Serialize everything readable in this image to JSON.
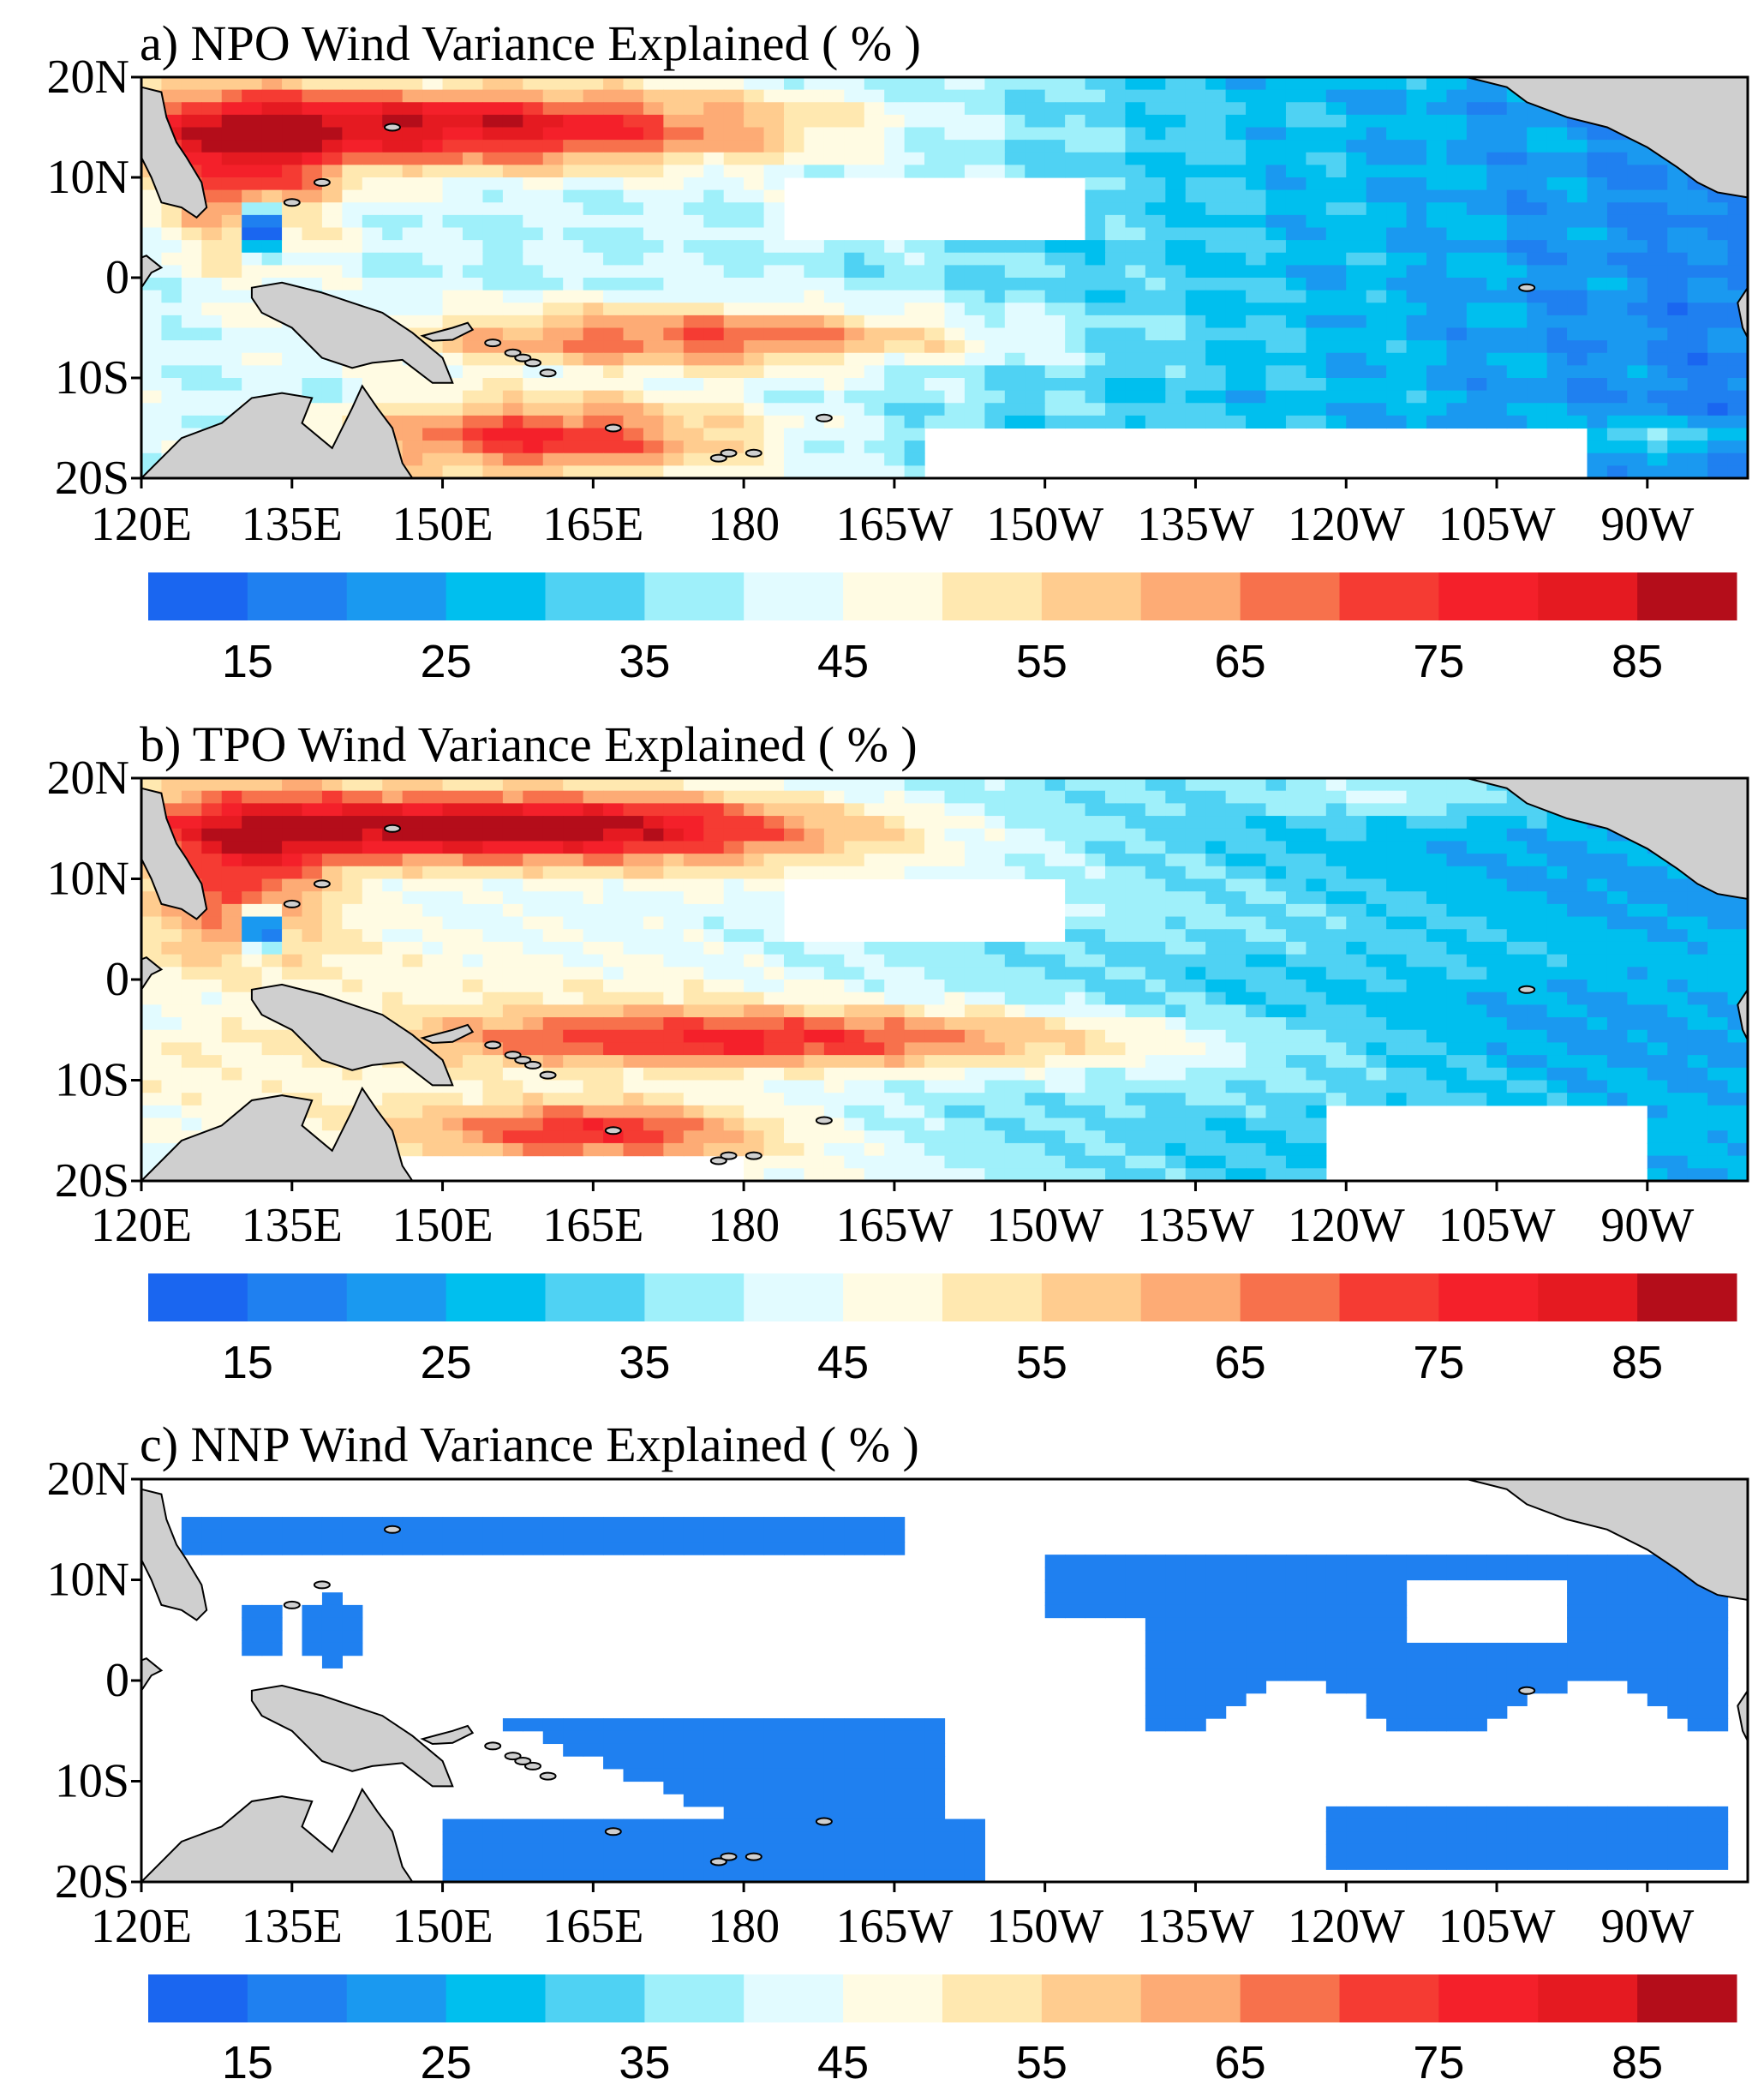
{
  "figure": {
    "description_panels": 3
  },
  "chart_data": [
    {
      "type": "heatmap",
      "panel": "a",
      "title": "a) NPO Wind Variance Explained ( % )",
      "xlabel": "",
      "ylabel": "",
      "x_ticks": [
        "120E",
        "135E",
        "150E",
        "165E",
        "180",
        "165W",
        "150W",
        "135W",
        "120W",
        "105W",
        "90W"
      ],
      "y_ticks": [
        "20N",
        "10N",
        "0",
        "10S",
        "20S"
      ],
      "xlim": [
        120,
        280
      ],
      "ylim": [
        -20,
        20
      ],
      "field_summary": [
        {
          "region": "north off-equatorial band 130E-170W, 10N-20N",
          "value_range": [
            65,
            90
          ]
        },
        {
          "region": "south band 155E-170W, 3S-10S",
          "value_range": [
            60,
            75
          ]
        },
        {
          "region": "southwest Pacific 150E-175E, 10S-20S",
          "value_range": [
            70,
            85
          ]
        },
        {
          "region": "equatorial band",
          "value_range": [
            40,
            50
          ]
        },
        {
          "region": "eastern Pacific",
          "value_range": [
            15,
            45
          ]
        },
        {
          "region": "blank areas near 5N-10N 180-150W and 15S-20S 170W-100W",
          "value_range": [
            0,
            10
          ]
        }
      ]
    },
    {
      "type": "heatmap",
      "panel": "b",
      "title": "b) TPO Wind Variance Explained ( % )",
      "xlabel": "",
      "ylabel": "",
      "x_ticks": [
        "120E",
        "135E",
        "150E",
        "165E",
        "180",
        "165W",
        "150W",
        "135W",
        "120W",
        "105W",
        "90W"
      ],
      "y_ticks": [
        "20N",
        "10N",
        "0",
        "10S",
        "20S"
      ],
      "xlim": [
        120,
        280
      ],
      "ylim": [
        -20,
        20
      ],
      "field_summary": [
        {
          "region": "north off-equatorial band 130E-175W, 12N-18N",
          "value_range": [
            70,
            90
          ]
        },
        {
          "region": "south band 160E-150W, 4S-8S",
          "value_range": [
            65,
            80
          ]
        },
        {
          "region": "equatorial band",
          "value_range": [
            45,
            55
          ]
        },
        {
          "region": "eastern Pacific",
          "value_range": [
            15,
            40
          ]
        }
      ]
    },
    {
      "type": "heatmap",
      "panel": "c",
      "title": "c) NNP Wind Variance Explained ( % )",
      "xlabel": "",
      "ylabel": "",
      "x_ticks": [
        "120E",
        "135E",
        "150E",
        "165E",
        "180",
        "165W",
        "150W",
        "135W",
        "120W",
        "105W",
        "90W"
      ],
      "y_ticks": [
        "20N",
        "10N",
        "0",
        "10S",
        "20S"
      ],
      "xlim": [
        120,
        280
      ],
      "ylim": [
        -20,
        20
      ],
      "field_summary": [
        {
          "region": "shaded areas (north band, southwest Pacific, eastern Pacific)",
          "value_range": [
            10,
            20
          ]
        },
        {
          "region": "elsewhere",
          "value_range": [
            0,
            10
          ]
        }
      ]
    }
  ],
  "colorbar": {
    "levels": [
      10,
      15,
      20,
      25,
      30,
      35,
      40,
      45,
      50,
      55,
      60,
      65,
      70,
      75,
      80,
      85,
      90
    ],
    "labels": [
      "15",
      "25",
      "35",
      "45",
      "55",
      "65",
      "75",
      "85"
    ],
    "colors": [
      "#1a66f0",
      "#1f80f0",
      "#1a99f0",
      "#00bfee",
      "#4fd2f3",
      "#9ff0fa",
      "#e2fbff",
      "#fffbe3",
      "#ffe8b0",
      "#ffcc8f",
      "#fdab75",
      "#f7714c",
      "#f53b33",
      "#f4202a",
      "#e51a21",
      "#b40d1a"
    ]
  },
  "colors": {
    "land": "#cfcfcf",
    "coast": "#000000",
    "frame": "#000000"
  }
}
